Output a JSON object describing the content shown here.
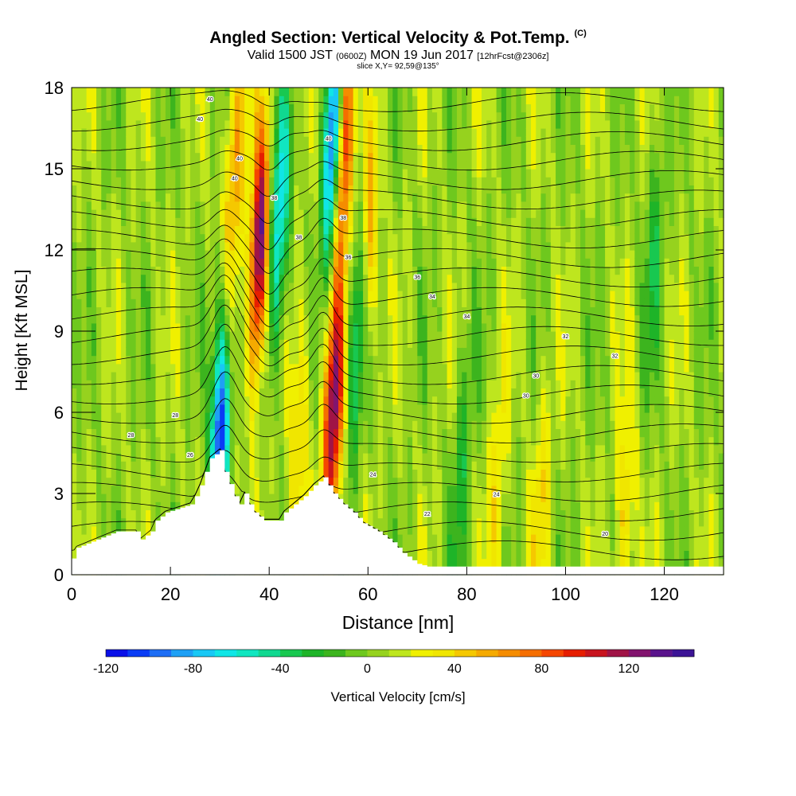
{
  "title": {
    "main": "Angled Section: Vertical Velocity & Pot.Temp.",
    "main_suffix": "(C)",
    "valid_a": "Valid 1500 JST",
    "valid_b": "(0600Z)",
    "valid_c": "MON 19 Jun 2017",
    "valid_d": "[12hrFcst@2306z]",
    "slice": "slice X,Y= 92,59@135°"
  },
  "chart_data": {
    "type": "heatmap",
    "xlabel": "Distance [nm]",
    "ylabel": "Height [Kft MSL]",
    "xlim": [
      0,
      132
    ],
    "ylim": [
      0,
      18
    ],
    "x_ticks": [
      "0",
      "20",
      "40",
      "60",
      "80",
      "100",
      "120"
    ],
    "y_ticks": [
      "0",
      "3",
      "6",
      "9",
      "12",
      "15",
      "18"
    ],
    "colorbar": {
      "label": "Vertical Velocity [cm/s]",
      "min": -120,
      "max": 150,
      "step": 10,
      "tick_labels": [
        "-120",
        "-80",
        "-40",
        "0",
        "40",
        "80",
        "120"
      ],
      "colors": [
        "#0a10e8",
        "#0a3cf5",
        "#1e6ef5",
        "#1ea0f5",
        "#18c8f5",
        "#10e6e6",
        "#10e6c0",
        "#10d890",
        "#18c850",
        "#1eb428",
        "#3cb41e",
        "#6ec81e",
        "#96d21e",
        "#bee61e",
        "#f0f000",
        "#f0e600",
        "#f5c800",
        "#f5aa00",
        "#f58c00",
        "#f56e00",
        "#f54600",
        "#e61e00",
        "#c8141e",
        "#a01446",
        "#82146e",
        "#5a148c",
        "#3c1496"
      ]
    },
    "terrain_kft": [
      [
        0,
        0.6
      ],
      [
        1,
        1.0
      ],
      [
        5,
        1.3
      ],
      [
        9,
        1.6
      ],
      [
        13,
        1.6
      ],
      [
        14,
        1.3
      ],
      [
        16,
        1.6
      ],
      [
        17,
        2.0
      ],
      [
        19,
        2.3
      ],
      [
        24,
        2.6
      ],
      [
        25,
        2.9
      ],
      [
        26,
        3.3
      ],
      [
        27,
        3.8
      ],
      [
        28,
        4.3
      ],
      [
        30,
        4.6
      ],
      [
        31,
        3.8
      ],
      [
        33,
        2.9
      ],
      [
        34,
        2.6
      ],
      [
        35,
        3.0
      ],
      [
        36,
        2.6
      ],
      [
        37,
        2.3
      ],
      [
        39,
        2.0
      ],
      [
        42,
        2.0
      ],
      [
        43,
        2.3
      ],
      [
        45,
        2.6
      ],
      [
        47,
        2.9
      ],
      [
        49,
        3.3
      ],
      [
        51,
        3.6
      ],
      [
        52,
        3.3
      ],
      [
        53,
        3.0
      ],
      [
        55,
        2.6
      ],
      [
        57,
        2.3
      ],
      [
        59,
        1.9
      ],
      [
        62,
        1.6
      ],
      [
        65,
        1.2
      ],
      [
        67,
        0.8
      ],
      [
        70,
        0.4
      ],
      [
        72,
        0.3
      ],
      [
        132,
        0.3
      ]
    ],
    "updrafts": [
      {
        "x": 38,
        "z": 12,
        "w": 130
      },
      {
        "x": 55,
        "z": 16,
        "w": 110
      },
      {
        "x": 53,
        "z": 6,
        "w": 120
      },
      {
        "x": 46,
        "z": 5,
        "w": 40
      },
      {
        "x": 33,
        "z": 15,
        "w": 60
      },
      {
        "x": 60,
        "z": 12,
        "w": 60
      },
      {
        "x": 86,
        "z": 3,
        "w": 30
      },
      {
        "x": 95,
        "z": 3,
        "w": 30
      },
      {
        "x": 112,
        "z": 2,
        "w": 40
      }
    ],
    "downdrafts": [
      {
        "x": 30,
        "z": 5,
        "w": -120
      },
      {
        "x": 42,
        "z": 13,
        "w": -80
      },
      {
        "x": 53,
        "z": 16,
        "w": -120
      },
      {
        "x": 58,
        "z": 9,
        "w": -60
      },
      {
        "x": 118,
        "z": 12,
        "w": -30
      },
      {
        "x": 79,
        "z": 4,
        "w": -30
      }
    ],
    "theta_contour_labels": [
      "40",
      "40",
      "40",
      "40",
      "40",
      "38",
      "38",
      "38",
      "36",
      "36",
      "34",
      "34",
      "32",
      "32",
      "30",
      "30",
      "28",
      "28",
      "26",
      "24",
      "24",
      "22",
      "20"
    ]
  }
}
